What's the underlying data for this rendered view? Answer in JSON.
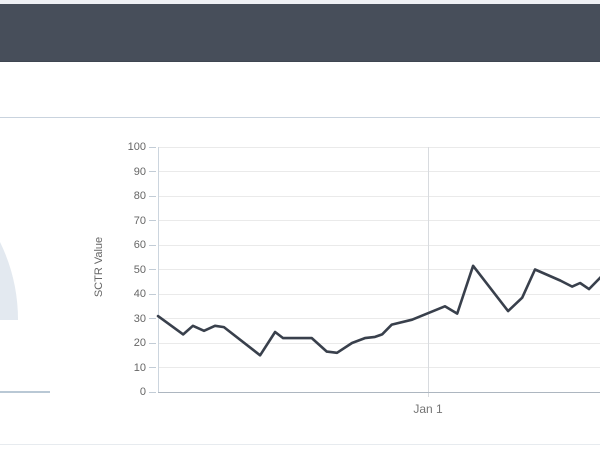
{
  "app": {
    "header": {
      "title": "",
      "background": "#474e5a"
    }
  },
  "gauge_partial": {
    "description": "right edge of a semicircular gauge chart, mostly cut off by left viewport edge",
    "fill": "#e3e9f0",
    "baseline_color": "#b9c8d5"
  },
  "chart_data": {
    "type": "line",
    "title": "",
    "xlabel": "",
    "ylabel": "SCTR Value",
    "ylim": [
      0,
      100
    ],
    "y_ticks": [
      0,
      10,
      20,
      30,
      40,
      50,
      60,
      70,
      80,
      90,
      100
    ],
    "x_ticks": [
      {
        "label": "Jan 1",
        "t": 0.611
      }
    ],
    "grid": "horizontal",
    "legend": "none",
    "line_color": "#39404c",
    "grid_color": "#eaeaea",
    "tick_label_color": "#666666",
    "series": [
      {
        "name": "SCTR Value",
        "points": [
          {
            "t": 0.0,
            "v": 31
          },
          {
            "t": 0.057,
            "v": 23.5
          },
          {
            "t": 0.079,
            "v": 27
          },
          {
            "t": 0.104,
            "v": 25
          },
          {
            "t": 0.129,
            "v": 27
          },
          {
            "t": 0.149,
            "v": 26.5
          },
          {
            "t": 0.231,
            "v": 15
          },
          {
            "t": 0.265,
            "v": 24.5
          },
          {
            "t": 0.283,
            "v": 22
          },
          {
            "t": 0.333,
            "v": 22
          },
          {
            "t": 0.348,
            "v": 22
          },
          {
            "t": 0.382,
            "v": 16.5
          },
          {
            "t": 0.405,
            "v": 16
          },
          {
            "t": 0.439,
            "v": 20
          },
          {
            "t": 0.468,
            "v": 22
          },
          {
            "t": 0.491,
            "v": 22.5
          },
          {
            "t": 0.507,
            "v": 23.5
          },
          {
            "t": 0.529,
            "v": 27.5
          },
          {
            "t": 0.575,
            "v": 29.5
          },
          {
            "t": 0.649,
            "v": 35
          },
          {
            "t": 0.677,
            "v": 32
          },
          {
            "t": 0.713,
            "v": 51.5
          },
          {
            "t": 0.792,
            "v": 33
          },
          {
            "t": 0.824,
            "v": 38.5
          },
          {
            "t": 0.853,
            "v": 50
          },
          {
            "t": 0.91,
            "v": 45.5
          },
          {
            "t": 0.937,
            "v": 43
          },
          {
            "t": 0.955,
            "v": 44.5
          },
          {
            "t": 0.975,
            "v": 42
          },
          {
            "t": 1.005,
            "v": 47.5
          }
        ]
      }
    ]
  }
}
